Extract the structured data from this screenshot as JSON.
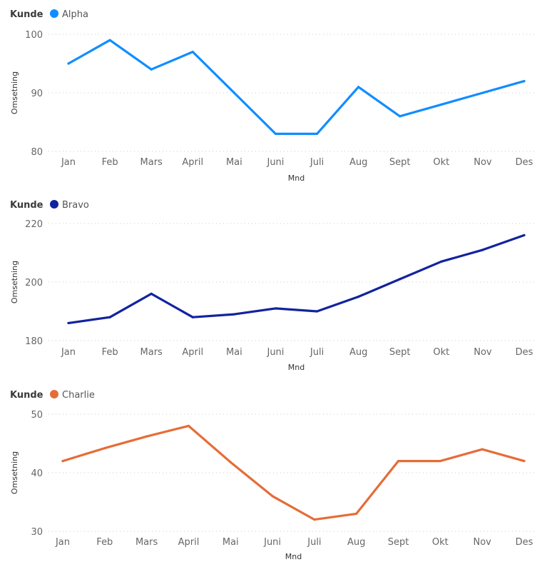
{
  "chart_data": [
    {
      "type": "line",
      "legend_title": "Kunde",
      "series": [
        {
          "name": "Alpha",
          "color": "#118DFF",
          "values": [
            95,
            99,
            94,
            97,
            90,
            83,
            83,
            91,
            86,
            88,
            90,
            92
          ]
        }
      ],
      "categories": [
        "Jan",
        "Feb",
        "Mars",
        "April",
        "Mai",
        "Juni",
        "Juli",
        "Aug",
        "Sept",
        "Okt",
        "Nov",
        "Des"
      ],
      "xlabel": "Mnd",
      "ylabel": "Omsetning",
      "ylim": [
        80,
        100
      ],
      "yticks": [
        80,
        90,
        100
      ],
      "grid": true,
      "legend_position": "top-left"
    },
    {
      "type": "line",
      "legend_title": "Kunde",
      "series": [
        {
          "name": "Bravo",
          "color": "#12239E",
          "values": [
            186,
            188,
            196,
            188,
            189,
            191,
            190,
            195,
            201,
            207,
            211,
            216
          ]
        }
      ],
      "categories": [
        "Jan",
        "Feb",
        "Mars",
        "April",
        "Mai",
        "Juni",
        "Juli",
        "Aug",
        "Sept",
        "Okt",
        "Nov",
        "Des"
      ],
      "xlabel": "Mnd",
      "ylabel": "Omsetning",
      "ylim": [
        180,
        220
      ],
      "yticks": [
        180,
        200,
        220
      ],
      "grid": true,
      "legend_position": "top-left"
    },
    {
      "type": "line",
      "legend_title": "Kunde",
      "series": [
        {
          "name": "Charlie",
          "color": "#E66C37",
          "values": [
            42,
            44.2,
            46.2,
            48,
            41.8,
            36,
            32,
            33,
            42,
            42,
            44,
            42
          ]
        }
      ],
      "categories": [
        "Jan",
        "Feb",
        "Mars",
        "April",
        "Mai",
        "Juni",
        "Juli",
        "Aug",
        "Sept",
        "Okt",
        "Nov",
        "Des"
      ],
      "xlabel": "Mnd",
      "ylabel": "Omsetning",
      "ylim": [
        30,
        50
      ],
      "yticks": [
        30,
        40,
        50
      ],
      "grid": true,
      "legend_position": "top-left"
    }
  ]
}
